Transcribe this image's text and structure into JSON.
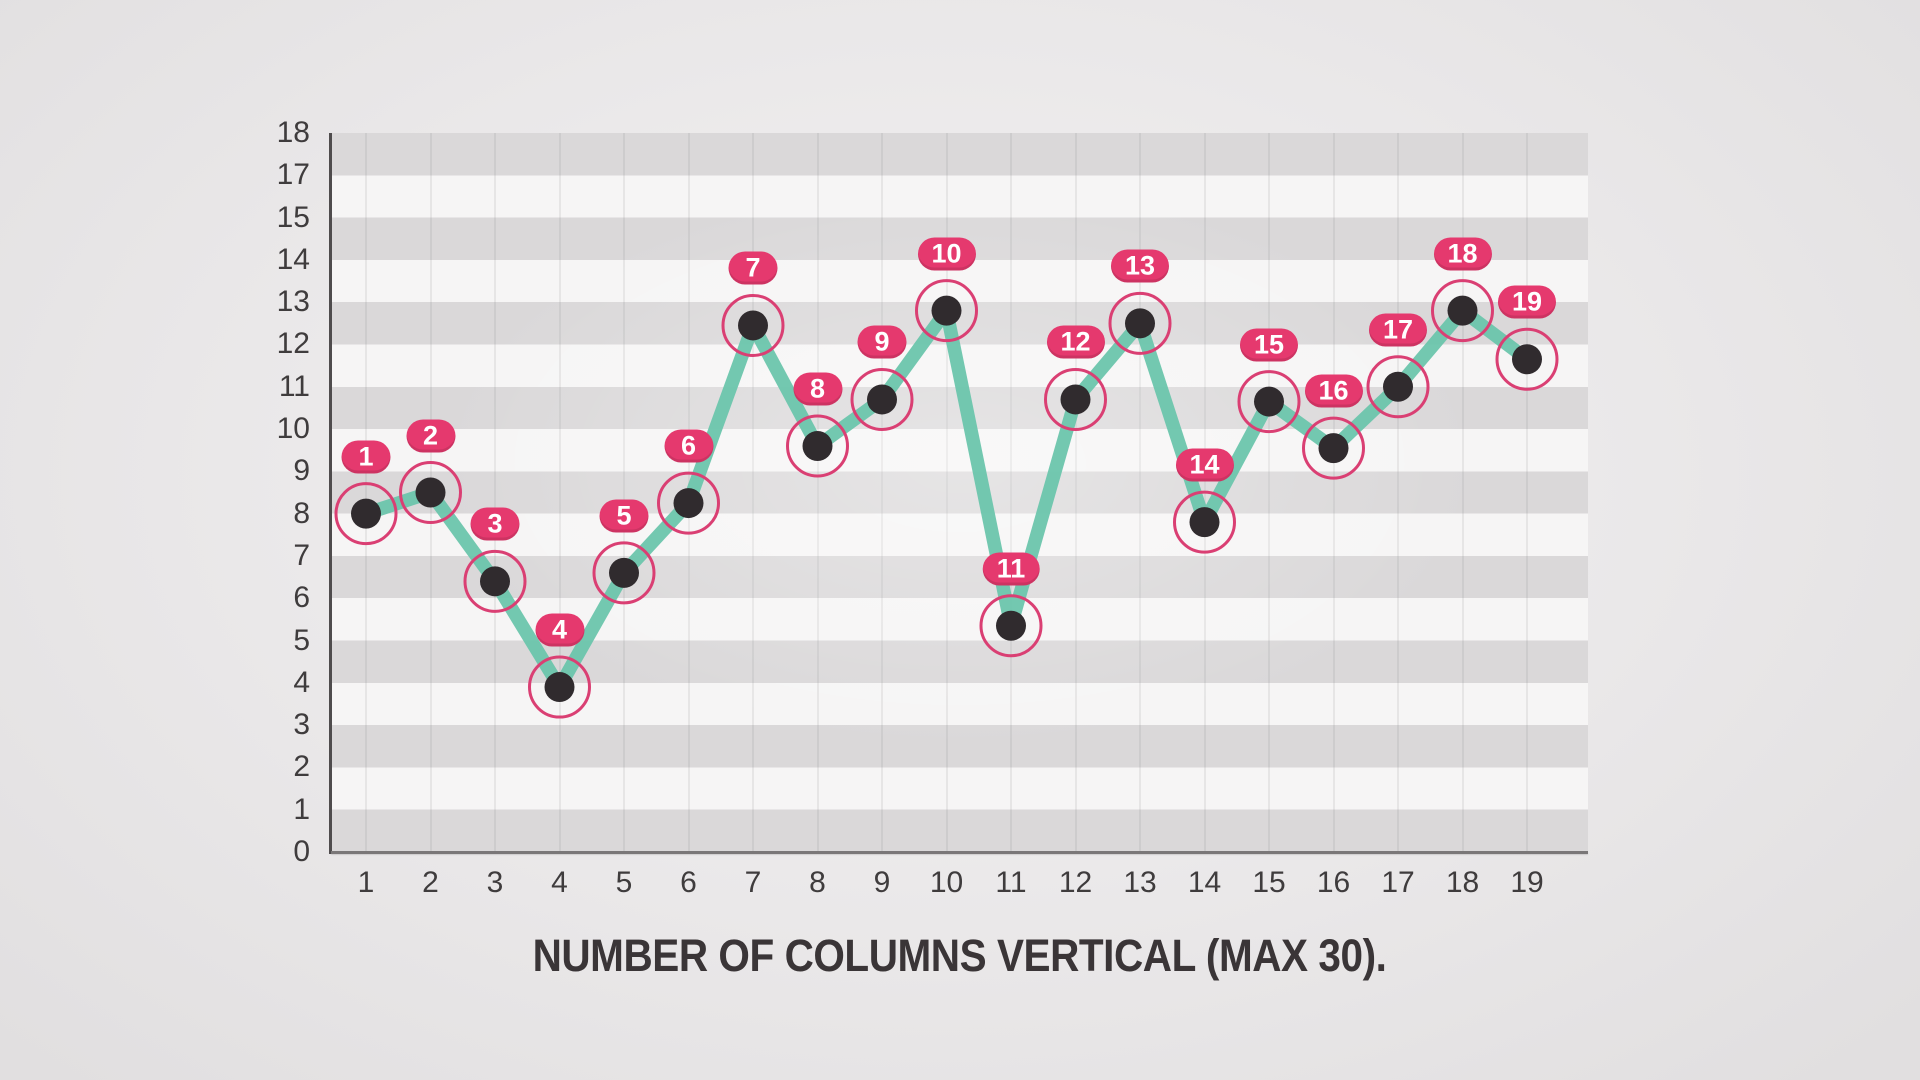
{
  "chart_data": {
    "type": "line",
    "title": "NUMBER OF COLUMNS VERTICAL (MAX 30).",
    "categories": [
      "1",
      "2",
      "3",
      "4",
      "5",
      "6",
      "7",
      "8",
      "9",
      "10",
      "11",
      "12",
      "13",
      "14",
      "15",
      "16",
      "17",
      "18",
      "19"
    ],
    "values": [
      8,
      8.5,
      6.4,
      3.9,
      6.6,
      8.25,
      12.45,
      9.6,
      10.7,
      12.8,
      5.35,
      10.7,
      12.5,
      7.8,
      10.65,
      9.55,
      11,
      12.8,
      11.65
    ],
    "point_labels": [
      "1",
      "2",
      "3",
      "4",
      "5",
      "6",
      "7",
      "8",
      "9",
      "10",
      "11",
      "12",
      "13",
      "14",
      "15",
      "16",
      "17",
      "18",
      "19"
    ],
    "y_tick_labels_top_to_bottom": [
      "18",
      "17",
      "15",
      "14",
      "13",
      "12",
      "11",
      "10",
      "9",
      "8",
      "7",
      "6",
      "5",
      "4",
      "3",
      "2",
      "1",
      "0"
    ],
    "y_axis_units_range": [
      0,
      17
    ],
    "legend": "none",
    "grid": {
      "horizontal_stripes": true,
      "vertical_lines_through_points": true
    },
    "marker_style": "dark dot inside pink ring with pink pill label above",
    "colors": {
      "line": "#6CC5AC",
      "dot": "#302B2E",
      "ring": "#DA3F73",
      "badge": "#E5396E",
      "badge_text": "#FFFFFF",
      "stripe_dark": "#DAD8D9",
      "stripe_light": "#F6F5F5",
      "tick_text": "#3F3C3D",
      "title_text": "#3A3537",
      "axis_line": "#4F4C4D"
    }
  }
}
